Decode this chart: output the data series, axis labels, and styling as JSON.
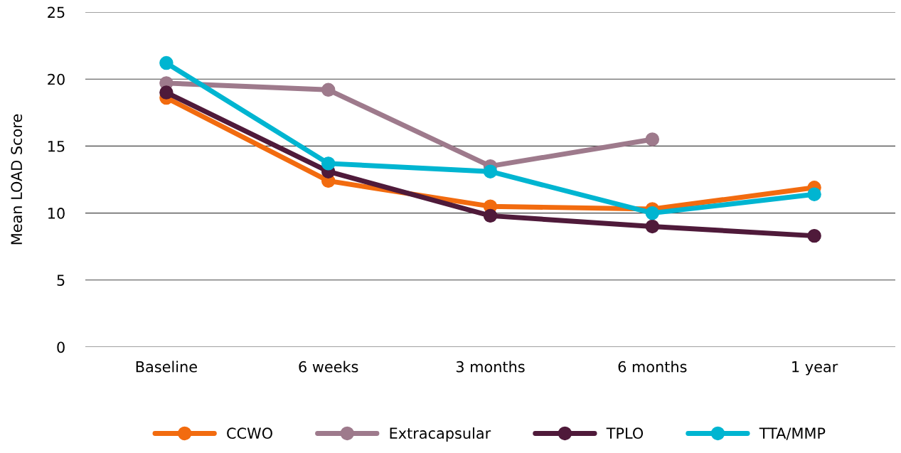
{
  "chart_data": {
    "type": "line",
    "ylabel": "Mean LOAD Score",
    "categories": [
      "Baseline",
      "6 weeks",
      "3 months",
      "6 months",
      "1 year"
    ],
    "series": [
      {
        "name": "CCWO",
        "color": "#f26b0f",
        "values": [
          18.6,
          12.4,
          10.5,
          10.3,
          11.9
        ]
      },
      {
        "name": "Extracapsular",
        "color": "#9e7a8c",
        "values": [
          19.7,
          19.2,
          13.5,
          15.5,
          null
        ]
      },
      {
        "name": "TPLO",
        "color": "#4f1a3a",
        "values": [
          19.0,
          13.1,
          9.8,
          9.0,
          8.3
        ]
      },
      {
        "name": "TTA/MMP",
        "color": "#00b5d1",
        "values": [
          21.2,
          13.7,
          13.1,
          10.0,
          11.4
        ]
      }
    ],
    "ylim": [
      0,
      25
    ],
    "yticks": [
      0,
      5,
      10,
      15,
      20,
      25
    ],
    "grid": "y",
    "legend": "bottom",
    "marker": "circle",
    "line_style": "solid"
  }
}
